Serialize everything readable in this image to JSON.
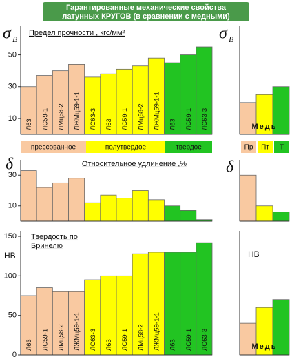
{
  "title_lines": [
    "Гарантированные механические свойства",
    "латунных КРУГОВ (в сравнении с медными)"
  ],
  "chart_data": [
    {
      "type": "bar",
      "symbol": "σ",
      "symbol_sub": "B",
      "label_lines": [
        "Предел прочности , кгс/мм²"
      ],
      "categories": [
        "Л63",
        "ЛС59-1",
        "ЛМц58-2",
        "ЛЖМц59-1-1",
        "ЛС63-3",
        "Л63",
        "ЛС59-1",
        "ЛМц58-2",
        "ЛЖМц59-1-1",
        "Л63",
        "ЛС59-1",
        "ЛС63-3"
      ],
      "values": [
        30,
        37,
        40,
        44,
        36,
        38,
        41,
        43,
        48,
        45,
        50,
        55
      ],
      "colors": [
        "#f9c9a1",
        "#f9c9a1",
        "#f9c9a1",
        "#f9c9a1",
        "#ffff00",
        "#ffff00",
        "#ffff00",
        "#ffff00",
        "#ffff00",
        "#22c422",
        "#22c422",
        "#22c422"
      ],
      "ylim": [
        0,
        68
      ],
      "yticks": [
        10,
        30,
        50
      ]
    },
    {
      "type": "bar",
      "symbol": "δ",
      "label_lines": [
        "Относительное удлинение ,%"
      ],
      "values": [
        33,
        22,
        25,
        28,
        12,
        17,
        15,
        20,
        14,
        10,
        7,
        1
      ],
      "colors": [
        "#f9c9a1",
        "#f9c9a1",
        "#f9c9a1",
        "#f9c9a1",
        "#ffff00",
        "#ffff00",
        "#ffff00",
        "#ffff00",
        "#ffff00",
        "#22c422",
        "#22c422",
        "#22c422"
      ],
      "ylim": [
        0,
        40
      ],
      "yticks": [
        10,
        30
      ]
    },
    {
      "type": "bar",
      "symbol": "HB",
      "label_lines": [
        "Твердость по",
        "Бринелю"
      ],
      "categories": [
        "Л63",
        "ЛС59-1",
        "ЛМц58-2",
        "ЛЖМц59-1-1",
        "ЛС63-3",
        "Л63",
        "ЛС59-1",
        "ЛМц58-2",
        "ЛЖМц59-1-1",
        "Л63",
        "ЛС59-1",
        "ЛС63-3"
      ],
      "values": [
        75,
        85,
        80,
        80,
        95,
        100,
        100,
        128,
        130,
        130,
        130,
        142
      ],
      "colors": [
        "#f9c9a1",
        "#f9c9a1",
        "#f9c9a1",
        "#f9c9a1",
        "#ffff00",
        "#ffff00",
        "#ffff00",
        "#ffff00",
        "#ffff00",
        "#22c422",
        "#22c422",
        "#22c422"
      ],
      "ylim": [
        0,
        157
      ],
      "yticks": [
        0,
        50,
        100,
        150
      ]
    },
    {
      "type": "bar",
      "symbol": "σ",
      "symbol_sub": "B",
      "label_lines": [
        "Медь"
      ],
      "values": [
        20,
        25,
        30
      ],
      "colors": [
        "#f9c9a1",
        "#ffff00",
        "#22c422"
      ],
      "ylim": [
        0,
        68
      ]
    },
    {
      "type": "bar",
      "symbol": "δ",
      "values": [
        30,
        10,
        6
      ],
      "colors": [
        "#f9c9a1",
        "#ffff00",
        "#22c422"
      ],
      "ylim": [
        0,
        40
      ]
    },
    {
      "type": "bar",
      "symbol": "HB",
      "label_lines": [
        "Медь"
      ],
      "values": [
        40,
        60,
        70
      ],
      "colors": [
        "#f9c9a1",
        "#ffff00",
        "#22c422"
      ],
      "ylim": [
        0,
        157
      ]
    }
  ],
  "legend": {
    "items": [
      {
        "label": "прессованное",
        "color": "#f9c9a1"
      },
      {
        "label": "полутвердое",
        "color": "#ffff00"
      },
      {
        "label": "твердое",
        "color": "#22c422"
      }
    ],
    "copper": [
      {
        "label": "Пр",
        "color": "#f9c9a1"
      },
      {
        "label": "Пт",
        "color": "#ffff00"
      },
      {
        "label": "Т",
        "color": "#22c422"
      }
    ]
  }
}
